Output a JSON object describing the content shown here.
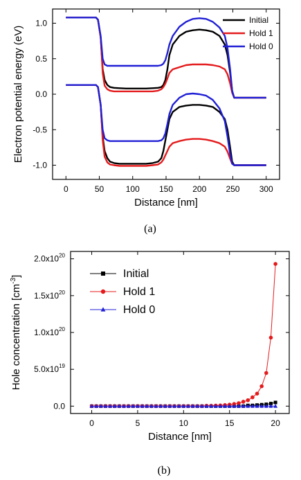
{
  "chart_data": [
    {
      "type": "line",
      "panel_label": "(a)",
      "xlabel": "Distance [nm]",
      "ylabel": "Electron potential energy (eV)",
      "xlim": [
        -20,
        320
      ],
      "ylim": [
        -1.2,
        1.2
      ],
      "xticks": [
        0,
        50,
        100,
        150,
        200,
        250,
        300
      ],
      "yticks": [
        1.0,
        0.5,
        0.0,
        -0.5,
        -1.0
      ],
      "xtick_labels": [
        "0",
        "50",
        "100",
        "150",
        "200",
        "250",
        "300"
      ],
      "ytick_labels": [
        "1.0",
        "0.5",
        "0.0",
        "-0.5",
        "-1.0"
      ],
      "legend_position": "top-right",
      "series": [
        {
          "name": "Initial",
          "color": "#000000",
          "band": "upper",
          "x": [
            0,
            45,
            48,
            52,
            55,
            58,
            62,
            66,
            72,
            80,
            90,
            100,
            110,
            120,
            130,
            138,
            143,
            146,
            149,
            152,
            155,
            160,
            170,
            180,
            190,
            200,
            210,
            220,
            230,
            238,
            242,
            246,
            249,
            252,
            300
          ],
          "y": [
            1.08,
            1.08,
            1.05,
            0.8,
            0.35,
            0.2,
            0.13,
            0.1,
            0.09,
            0.085,
            0.08,
            0.08,
            0.08,
            0.08,
            0.085,
            0.09,
            0.1,
            0.13,
            0.2,
            0.35,
            0.55,
            0.7,
            0.82,
            0.88,
            0.9,
            0.91,
            0.9,
            0.88,
            0.82,
            0.7,
            0.55,
            0.3,
            0.05,
            -0.05,
            -0.05
          ]
        },
        {
          "name": "Initial",
          "color": "#000000",
          "band": "lower",
          "x": [
            0,
            45,
            48,
            52,
            55,
            58,
            62,
            66,
            72,
            80,
            90,
            100,
            110,
            120,
            130,
            138,
            143,
            146,
            149,
            152,
            155,
            160,
            170,
            180,
            190,
            200,
            210,
            220,
            230,
            238,
            242,
            246,
            249,
            252,
            300
          ],
          "y": [
            0.13,
            0.13,
            0.1,
            -0.15,
            -0.6,
            -0.8,
            -0.9,
            -0.95,
            -0.97,
            -0.98,
            -0.98,
            -0.98,
            -0.98,
            -0.98,
            -0.97,
            -0.95,
            -0.9,
            -0.8,
            -0.65,
            -0.5,
            -0.35,
            -0.25,
            -0.18,
            -0.16,
            -0.15,
            -0.15,
            -0.16,
            -0.18,
            -0.25,
            -0.35,
            -0.5,
            -0.75,
            -0.95,
            -1.0,
            -1.0
          ]
        },
        {
          "name": "Hold 1",
          "color": "#e41a1c",
          "band": "upper",
          "x": [
            0,
            45,
            48,
            52,
            55,
            58,
            62,
            66,
            72,
            80,
            90,
            100,
            110,
            120,
            130,
            138,
            143,
            146,
            149,
            152,
            155,
            160,
            170,
            180,
            190,
            200,
            210,
            220,
            230,
            238,
            242,
            246,
            249,
            252,
            300
          ],
          "y": [
            1.08,
            1.08,
            1.05,
            0.8,
            0.3,
            0.12,
            0.07,
            0.05,
            0.04,
            0.04,
            0.04,
            0.04,
            0.04,
            0.04,
            0.04,
            0.05,
            0.07,
            0.1,
            0.15,
            0.22,
            0.3,
            0.35,
            0.38,
            0.41,
            0.42,
            0.42,
            0.42,
            0.41,
            0.39,
            0.35,
            0.28,
            0.15,
            0.02,
            -0.05,
            -0.05
          ]
        },
        {
          "name": "Hold 1",
          "color": "#e41a1c",
          "band": "lower",
          "x": [
            0,
            45,
            48,
            52,
            55,
            58,
            62,
            66,
            72,
            80,
            90,
            100,
            110,
            120,
            130,
            138,
            143,
            146,
            149,
            152,
            155,
            160,
            170,
            180,
            190,
            200,
            210,
            220,
            230,
            238,
            242,
            246,
            249,
            252,
            300
          ],
          "y": [
            0.13,
            0.13,
            0.1,
            -0.15,
            -0.65,
            -0.88,
            -0.96,
            -0.99,
            -1.0,
            -1.01,
            -1.01,
            -1.01,
            -1.01,
            -1.01,
            -1.0,
            -0.99,
            -0.96,
            -0.92,
            -0.86,
            -0.8,
            -0.74,
            -0.69,
            -0.66,
            -0.64,
            -0.63,
            -0.63,
            -0.64,
            -0.66,
            -0.69,
            -0.74,
            -0.81,
            -0.91,
            -0.98,
            -1.0,
            -1.0
          ]
        },
        {
          "name": "Hold 0",
          "color": "#1f1fd6",
          "band": "upper",
          "x": [
            0,
            45,
            48,
            52,
            55,
            58,
            62,
            66,
            72,
            80,
            90,
            100,
            110,
            120,
            130,
            138,
            143,
            146,
            149,
            152,
            155,
            160,
            170,
            180,
            190,
            200,
            210,
            220,
            230,
            238,
            242,
            246,
            249,
            252,
            300
          ],
          "y": [
            1.08,
            1.08,
            1.05,
            0.82,
            0.5,
            0.42,
            0.4,
            0.4,
            0.4,
            0.4,
            0.4,
            0.4,
            0.4,
            0.4,
            0.4,
            0.4,
            0.41,
            0.43,
            0.48,
            0.58,
            0.7,
            0.82,
            0.95,
            1.02,
            1.06,
            1.07,
            1.06,
            1.02,
            0.94,
            0.82,
            0.65,
            0.35,
            0.05,
            -0.05,
            -0.05
          ]
        },
        {
          "name": "Hold 0",
          "color": "#1f1fd6",
          "band": "lower",
          "x": [
            0,
            45,
            48,
            52,
            55,
            58,
            62,
            66,
            72,
            80,
            90,
            100,
            110,
            120,
            130,
            138,
            143,
            146,
            149,
            152,
            155,
            160,
            170,
            180,
            190,
            200,
            210,
            220,
            230,
            238,
            242,
            246,
            249,
            252,
            300
          ],
          "y": [
            0.13,
            0.13,
            0.1,
            -0.15,
            -0.5,
            -0.62,
            -0.65,
            -0.66,
            -0.66,
            -0.66,
            -0.66,
            -0.66,
            -0.66,
            -0.66,
            -0.66,
            -0.66,
            -0.65,
            -0.62,
            -0.55,
            -0.42,
            -0.28,
            -0.15,
            -0.05,
            0.0,
            0.01,
            0.0,
            -0.02,
            -0.08,
            -0.2,
            -0.38,
            -0.6,
            -0.85,
            -0.98,
            -1.0,
            -1.0
          ]
        }
      ]
    },
    {
      "type": "scatter",
      "panel_label": "(b)",
      "xlabel": "Distance [nm]",
      "ylabel": "Hole concentration [cm⁻³]",
      "xlim": [
        -2.3,
        21.5
      ],
      "ylim": [
        -1e+19,
        2.1e+20
      ],
      "xticks": [
        0,
        5,
        10,
        15,
        20
      ],
      "yticks": [
        0.0,
        5e+19,
        1e+20,
        1.5e+20,
        2e+20
      ],
      "xtick_labels": [
        "0",
        "5",
        "10",
        "15",
        "20"
      ],
      "ytick_labels": [
        "0.0",
        "5.0x10¹⁹",
        "1.0x10²⁰",
        "1.5x10²⁰",
        "2.0x10²⁰"
      ],
      "legend_position": "top-left",
      "x": [
        0,
        0.5,
        1,
        1.5,
        2,
        2.5,
        3,
        3.5,
        4,
        4.5,
        5,
        5.5,
        6,
        6.5,
        7,
        7.5,
        8,
        8.5,
        9,
        9.5,
        10,
        10.5,
        11,
        11.5,
        12,
        12.5,
        13,
        13.5,
        14,
        14.5,
        15,
        15.5,
        16,
        16.5,
        17,
        17.5,
        18,
        18.5,
        19,
        19.5,
        20
      ],
      "series": [
        {
          "name": "Initial",
          "color": "#000000",
          "marker": "square",
          "y": [
            0,
            0,
            0,
            0,
            0,
            0,
            0,
            0,
            0,
            0,
            0,
            0,
            0,
            0,
            0,
            0,
            0,
            0,
            0,
            0,
            0,
            0,
            0,
            0,
            0,
            0,
            0,
            0,
            0,
            0,
            0,
            0,
            0,
            0,
            1e+18,
            1e+18,
            1.5e+18,
            2e+18,
            2.5e+18,
            3.5e+18,
            5e+18
          ]
        },
        {
          "name": "Hold 1",
          "color": "#e41a1c",
          "marker": "circle",
          "y": [
            0,
            0,
            0,
            0,
            0,
            0,
            0,
            0,
            0,
            0,
            0,
            0,
            0,
            0,
            0,
            0,
            0,
            0,
            0,
            0,
            0,
            0,
            0,
            0,
            0,
            5e+17,
            5e+17,
            8e+17,
            1e+18,
            1.5e+18,
            2e+18,
            3e+18,
            4e+18,
            6e+18,
            8e+18,
            1.2e+19,
            1.7e+19,
            2.7e+19,
            4.5e+19,
            9.3e+19,
            1.93e+20
          ]
        },
        {
          "name": "Hold 0",
          "color": "#1f1fd6",
          "marker": "triangle",
          "y": [
            0,
            0,
            0,
            0,
            0,
            0,
            0,
            0,
            0,
            0,
            0,
            0,
            0,
            0,
            0,
            0,
            0,
            0,
            0,
            0,
            0,
            0,
            0,
            0,
            0,
            0,
            0,
            0,
            0,
            0,
            0,
            0,
            0,
            0,
            0,
            0,
            0,
            0,
            0,
            0,
            0
          ]
        }
      ]
    }
  ]
}
